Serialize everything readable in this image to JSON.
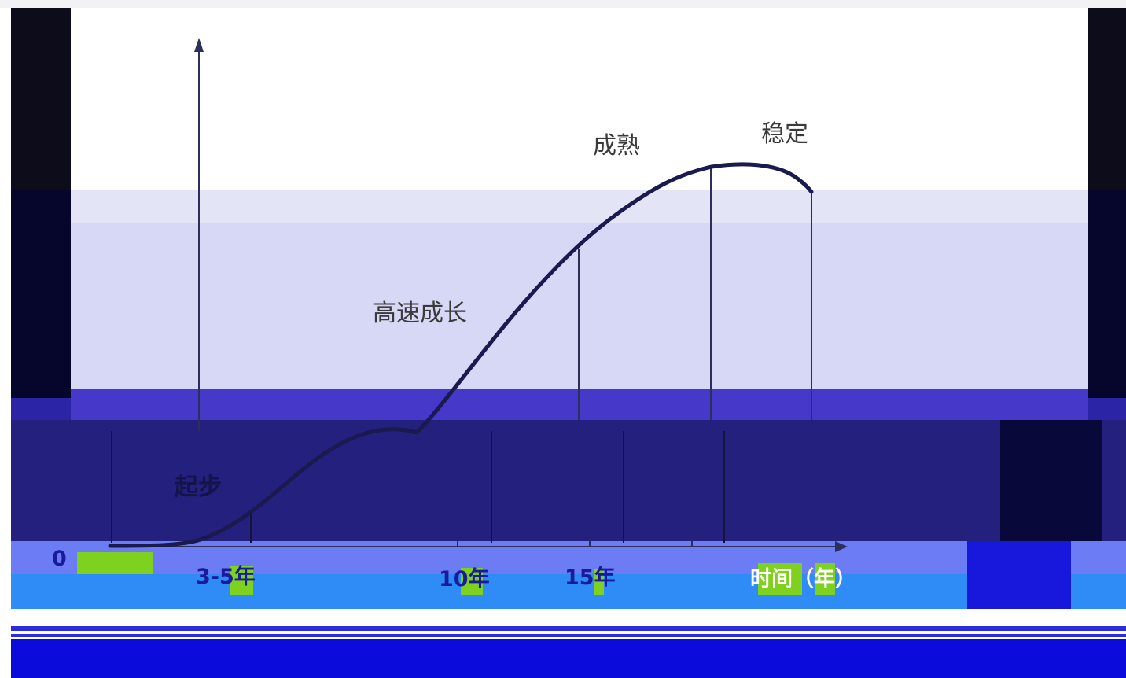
{
  "diagram": {
    "origin_label": "0",
    "stages": [
      {
        "id": "start",
        "label": "起步"
      },
      {
        "id": "rapid-growth",
        "label": "高速成长"
      },
      {
        "id": "mature",
        "label": "成熟"
      },
      {
        "id": "stable",
        "label": "稳定"
      }
    ],
    "x_ticks": [
      "3-5年",
      "10年",
      "15年"
    ],
    "x_axis_label": "时间（年）",
    "curve_color": "#1a1a4e",
    "axis_color": "#2e2e5a"
  }
}
